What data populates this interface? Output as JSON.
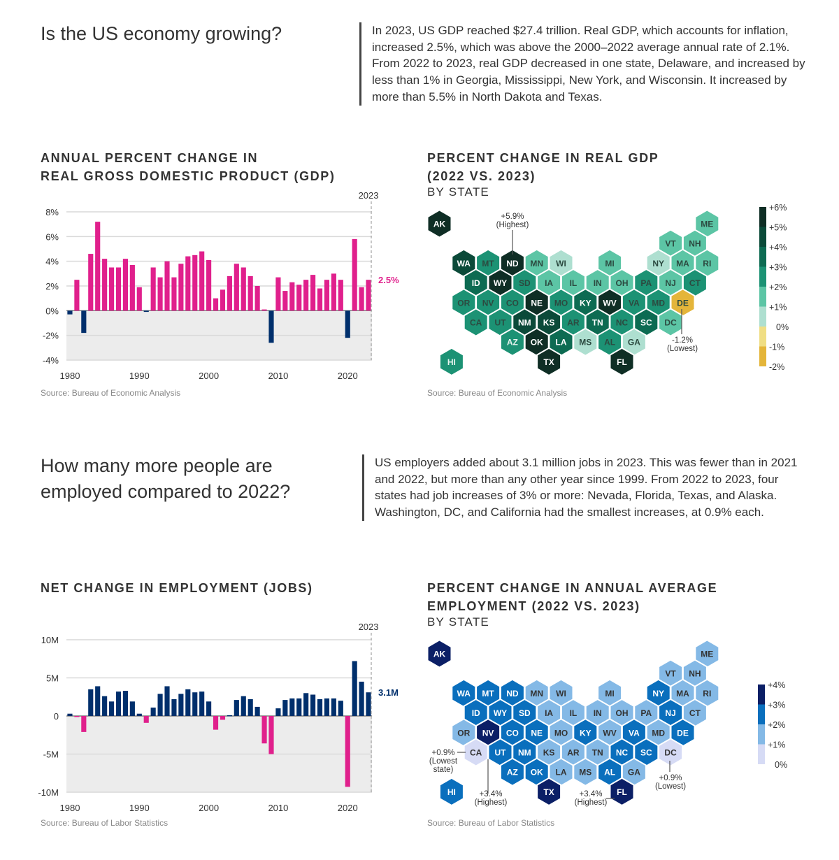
{
  "section1": {
    "question": "Is the US economy growing?",
    "paragraph": "In 2023, US GDP reached $27.4 trillion. Real GDP, which accounts for inflation, increased 2.5%, which was above the 2000–2022 average annual rate of 2.1%. From 2022 to 2023, real GDP decreased in one state, Delaware, and increased by less than 1% in Georgia, Mississippi, New York, and Wisconsin. It increased by more than 5.5% in North Dakota and Texas."
  },
  "section2": {
    "question_line1": "How many more people are",
    "question_line2": "employed compared to 2022?",
    "paragraph": "US employers added about 3.1 million jobs in 2023. This was fewer than in 2021 and 2022, but more than any other year since 1999. From 2022 to 2023, four states had job increases of 3% or more: Nevada, Florida, Texas, and Alaska. Washington, DC, and California had the smallest increases, at 0.9% each."
  },
  "colors": {
    "positive_gdp": "#e0208c",
    "negative_gdp": "#002f6c",
    "positive_jobs": "#002f6c",
    "negative_jobs": "#e0208c",
    "negative_area": "#ececec"
  },
  "chart_data": [
    {
      "id": "gdp_bar",
      "type": "bar",
      "title_line1": "ANNUAL PERCENT CHANGE IN",
      "title_line2": "REAL GROSS DOMESTIC PRODUCT (GDP)",
      "source": "Source: Bureau of Economic Analysis",
      "x": [
        1980,
        1981,
        1982,
        1983,
        1984,
        1985,
        1986,
        1987,
        1988,
        1989,
        1990,
        1991,
        1992,
        1993,
        1994,
        1995,
        1996,
        1997,
        1998,
        1999,
        2000,
        2001,
        2002,
        2003,
        2004,
        2005,
        2006,
        2007,
        2008,
        2009,
        2010,
        2011,
        2012,
        2013,
        2014,
        2015,
        2016,
        2017,
        2018,
        2019,
        2020,
        2021,
        2022,
        2023
      ],
      "values": [
        -0.3,
        2.5,
        -1.8,
        4.6,
        7.2,
        4.2,
        3.5,
        3.5,
        4.2,
        3.7,
        1.9,
        -0.1,
        3.5,
        2.7,
        4.0,
        2.7,
        3.8,
        4.4,
        4.5,
        4.8,
        4.1,
        1.0,
        1.7,
        2.8,
        3.8,
        3.5,
        2.8,
        2.0,
        0.1,
        -2.6,
        2.7,
        1.6,
        2.3,
        2.1,
        2.5,
        2.9,
        1.8,
        2.5,
        3.0,
        2.5,
        -2.2,
        5.8,
        1.9,
        2.5
      ],
      "ylim": [
        -4,
        8
      ],
      "yticks": [
        8,
        6,
        4,
        2,
        0,
        -2,
        -4
      ],
      "ytick_labels": [
        "8%",
        "6%",
        "4%",
        "2%",
        "0%",
        "-2%",
        "-4%"
      ],
      "xticks": [
        1980,
        1990,
        2000,
        2010,
        2020
      ],
      "xtick_labels": [
        "1980",
        "1990",
        "2000",
        "2010",
        "2020"
      ],
      "highlight_year_label": "2023",
      "highlight_value_label": "2.5%",
      "grid": true
    },
    {
      "id": "jobs_bar",
      "type": "bar",
      "title_line1": "NET CHANGE IN EMPLOYMENT (JOBS)",
      "source": "Source: Bureau of Labor Statistics",
      "x": [
        1980,
        1981,
        1982,
        1983,
        1984,
        1985,
        1986,
        1987,
        1988,
        1989,
        1990,
        1991,
        1992,
        1993,
        1994,
        1995,
        1996,
        1997,
        1998,
        1999,
        2000,
        2001,
        2002,
        2003,
        2004,
        2005,
        2006,
        2007,
        2008,
        2009,
        2010,
        2011,
        2012,
        2013,
        2014,
        2015,
        2016,
        2017,
        2018,
        2019,
        2020,
        2021,
        2022,
        2023
      ],
      "values": [
        0.3,
        -0.1,
        -2.1,
        3.5,
        3.9,
        2.6,
        1.9,
        3.2,
        3.3,
        1.9,
        0.3,
        -0.9,
        1.1,
        2.9,
        3.9,
        2.2,
        2.9,
        3.5,
        3.1,
        3.2,
        1.9,
        -1.8,
        -0.5,
        0.1,
        2.1,
        2.6,
        2.2,
        1.2,
        -3.6,
        -5.0,
        1.0,
        2.1,
        2.3,
        2.3,
        3.0,
        2.8,
        2.2,
        2.3,
        2.3,
        2.0,
        -9.3,
        7.2,
        4.5,
        3.1
      ],
      "unit": "millions of jobs",
      "ylim": [
        -10,
        10
      ],
      "yticks": [
        10,
        5,
        0,
        -5,
        -10
      ],
      "ytick_labels": [
        "10M",
        "5M",
        "0",
        "-5M",
        "-10M"
      ],
      "xticks": [
        1980,
        1990,
        2000,
        2010,
        2020
      ],
      "xtick_labels": [
        "1980",
        "1990",
        "2000",
        "2010",
        "2020"
      ],
      "highlight_year_label": "2023",
      "highlight_value_label": "3.1M",
      "grid": true
    },
    {
      "id": "gdp_hex",
      "type": "heatmap",
      "title_line1": "PERCENT CHANGE IN REAL GDP",
      "title_line2": "(2022 VS. 2023)",
      "subtitle": "BY STATE",
      "source": "Source: Bureau of Economic Analysis",
      "legend": {
        "labels": [
          "+6%",
          "+5%",
          "+4%",
          "+3%",
          "+2%",
          "+1%",
          "0%",
          "-1%",
          "-2%"
        ],
        "bins": [
          {
            "range": "+5% to +6%",
            "color": "#0f2e25"
          },
          {
            "range": "+4% to +5%",
            "color": "#0b4a39"
          },
          {
            "range": "+3% to +4%",
            "color": "#0d6b52"
          },
          {
            "range": "+2% to +3%",
            "color": "#1c9274"
          },
          {
            "range": "+1% to +2%",
            "color": "#5cc5a5"
          },
          {
            "range": "0% to +1%",
            "color": "#aedfd0"
          },
          {
            "range": "-1% to 0%",
            "color": "#f0de84"
          },
          {
            "range": "-2% to -1%",
            "color": "#e4b53a"
          }
        ]
      },
      "states": [
        {
          "s": "AK",
          "bin": 0
        },
        {
          "s": "ME",
          "bin": 4
        },
        {
          "s": "VT",
          "bin": 4
        },
        {
          "s": "NH",
          "bin": 4
        },
        {
          "s": "WA",
          "bin": 1
        },
        {
          "s": "MT",
          "bin": 3
        },
        {
          "s": "ND",
          "bin": 0
        },
        {
          "s": "MN",
          "bin": 4
        },
        {
          "s": "WI",
          "bin": 5
        },
        {
          "s": "MI",
          "bin": 4
        },
        {
          "s": "NY",
          "bin": 5
        },
        {
          "s": "MA",
          "bin": 4
        },
        {
          "s": "RI",
          "bin": 4
        },
        {
          "s": "ID",
          "bin": 2
        },
        {
          "s": "WY",
          "bin": 0
        },
        {
          "s": "SD",
          "bin": 3
        },
        {
          "s": "IA",
          "bin": 4
        },
        {
          "s": "IL",
          "bin": 4
        },
        {
          "s": "IN",
          "bin": 4
        },
        {
          "s": "OH",
          "bin": 4
        },
        {
          "s": "PA",
          "bin": 3
        },
        {
          "s": "NJ",
          "bin": 4
        },
        {
          "s": "CT",
          "bin": 3
        },
        {
          "s": "OR",
          "bin": 3
        },
        {
          "s": "NV",
          "bin": 3
        },
        {
          "s": "CO",
          "bin": 3
        },
        {
          "s": "NE",
          "bin": 0
        },
        {
          "s": "MO",
          "bin": 3
        },
        {
          "s": "KY",
          "bin": 2
        },
        {
          "s": "WV",
          "bin": 0
        },
        {
          "s": "VA",
          "bin": 3
        },
        {
          "s": "MD",
          "bin": 3
        },
        {
          "s": "DE",
          "bin": 7
        },
        {
          "s": "CA",
          "bin": 3
        },
        {
          "s": "UT",
          "bin": 3
        },
        {
          "s": "NM",
          "bin": 1
        },
        {
          "s": "KS",
          "bin": 1
        },
        {
          "s": "AR",
          "bin": 3
        },
        {
          "s": "TN",
          "bin": 2
        },
        {
          "s": "NC",
          "bin": 3
        },
        {
          "s": "SC",
          "bin": 2
        },
        {
          "s": "DC",
          "bin": 4
        },
        {
          "s": "AZ",
          "bin": 3
        },
        {
          "s": "OK",
          "bin": 0
        },
        {
          "s": "LA",
          "bin": 2
        },
        {
          "s": "MS",
          "bin": 5
        },
        {
          "s": "AL",
          "bin": 3
        },
        {
          "s": "GA",
          "bin": 5
        },
        {
          "s": "HI",
          "bin": 3
        },
        {
          "s": "TX",
          "bin": 0
        },
        {
          "s": "FL",
          "bin": 0
        }
      ],
      "annotations": [
        {
          "state": "ND",
          "value": "+5.9%",
          "note": "(Highest)"
        },
        {
          "state": "DE",
          "value": "-1.2%",
          "note": "(Lowest)"
        }
      ]
    },
    {
      "id": "jobs_hex",
      "type": "heatmap",
      "title_line1": "PERCENT CHANGE IN ANNUAL AVERAGE",
      "title_line2": "EMPLOYMENT (2022 VS. 2023)",
      "subtitle": "BY STATE",
      "source": "Source: Bureau of Labor Statistics",
      "legend": {
        "labels": [
          "+4%",
          "+3%",
          "+2%",
          "+1%",
          "0%"
        ],
        "bins": [
          {
            "range": "+3% to +4%",
            "color": "#0b1f66"
          },
          {
            "range": "+2% to +3%",
            "color": "#0a6fbd"
          },
          {
            "range": "+1% to +2%",
            "color": "#84b9e6"
          },
          {
            "range": "0% to +1%",
            "color": "#d6dbf5"
          }
        ]
      },
      "states": [
        {
          "s": "AK",
          "bin": 0
        },
        {
          "s": "ME",
          "bin": 2
        },
        {
          "s": "VT",
          "bin": 2
        },
        {
          "s": "NH",
          "bin": 2
        },
        {
          "s": "WA",
          "bin": 1
        },
        {
          "s": "MT",
          "bin": 1
        },
        {
          "s": "ND",
          "bin": 1
        },
        {
          "s": "MN",
          "bin": 2
        },
        {
          "s": "WI",
          "bin": 2
        },
        {
          "s": "MI",
          "bin": 2
        },
        {
          "s": "NY",
          "bin": 1
        },
        {
          "s": "MA",
          "bin": 2
        },
        {
          "s": "RI",
          "bin": 2
        },
        {
          "s": "ID",
          "bin": 1
        },
        {
          "s": "WY",
          "bin": 1
        },
        {
          "s": "SD",
          "bin": 1
        },
        {
          "s": "IA",
          "bin": 2
        },
        {
          "s": "IL",
          "bin": 2
        },
        {
          "s": "IN",
          "bin": 2
        },
        {
          "s": "OH",
          "bin": 2
        },
        {
          "s": "PA",
          "bin": 2
        },
        {
          "s": "NJ",
          "bin": 1
        },
        {
          "s": "CT",
          "bin": 2
        },
        {
          "s": "OR",
          "bin": 2
        },
        {
          "s": "NV",
          "bin": 0
        },
        {
          "s": "CO",
          "bin": 1
        },
        {
          "s": "NE",
          "bin": 1
        },
        {
          "s": "MO",
          "bin": 2
        },
        {
          "s": "KY",
          "bin": 1
        },
        {
          "s": "WV",
          "bin": 2
        },
        {
          "s": "VA",
          "bin": 1
        },
        {
          "s": "MD",
          "bin": 2
        },
        {
          "s": "DE",
          "bin": 1
        },
        {
          "s": "CA",
          "bin": 3
        },
        {
          "s": "UT",
          "bin": 1
        },
        {
          "s": "NM",
          "bin": 1
        },
        {
          "s": "KS",
          "bin": 2
        },
        {
          "s": "AR",
          "bin": 2
        },
        {
          "s": "TN",
          "bin": 2
        },
        {
          "s": "NC",
          "bin": 1
        },
        {
          "s": "SC",
          "bin": 1
        },
        {
          "s": "DC",
          "bin": 3
        },
        {
          "s": "AZ",
          "bin": 1
        },
        {
          "s": "OK",
          "bin": 1
        },
        {
          "s": "LA",
          "bin": 2
        },
        {
          "s": "MS",
          "bin": 2
        },
        {
          "s": "AL",
          "bin": 1
        },
        {
          "s": "GA",
          "bin": 2
        },
        {
          "s": "HI",
          "bin": 1
        },
        {
          "s": "TX",
          "bin": 0
        },
        {
          "s": "FL",
          "bin": 0
        }
      ],
      "annotations": [
        {
          "state": "CA",
          "value": "+0.9%",
          "note": "(Lowest",
          "note2": "state)"
        },
        {
          "state": "NV",
          "value": "+3.4%",
          "note": "(Highest)"
        },
        {
          "state": "FL",
          "value": "+3.4%",
          "note": "(Highest)"
        },
        {
          "state": "DC",
          "value": "+0.9%",
          "note": "(Lowest)"
        }
      ]
    }
  ]
}
